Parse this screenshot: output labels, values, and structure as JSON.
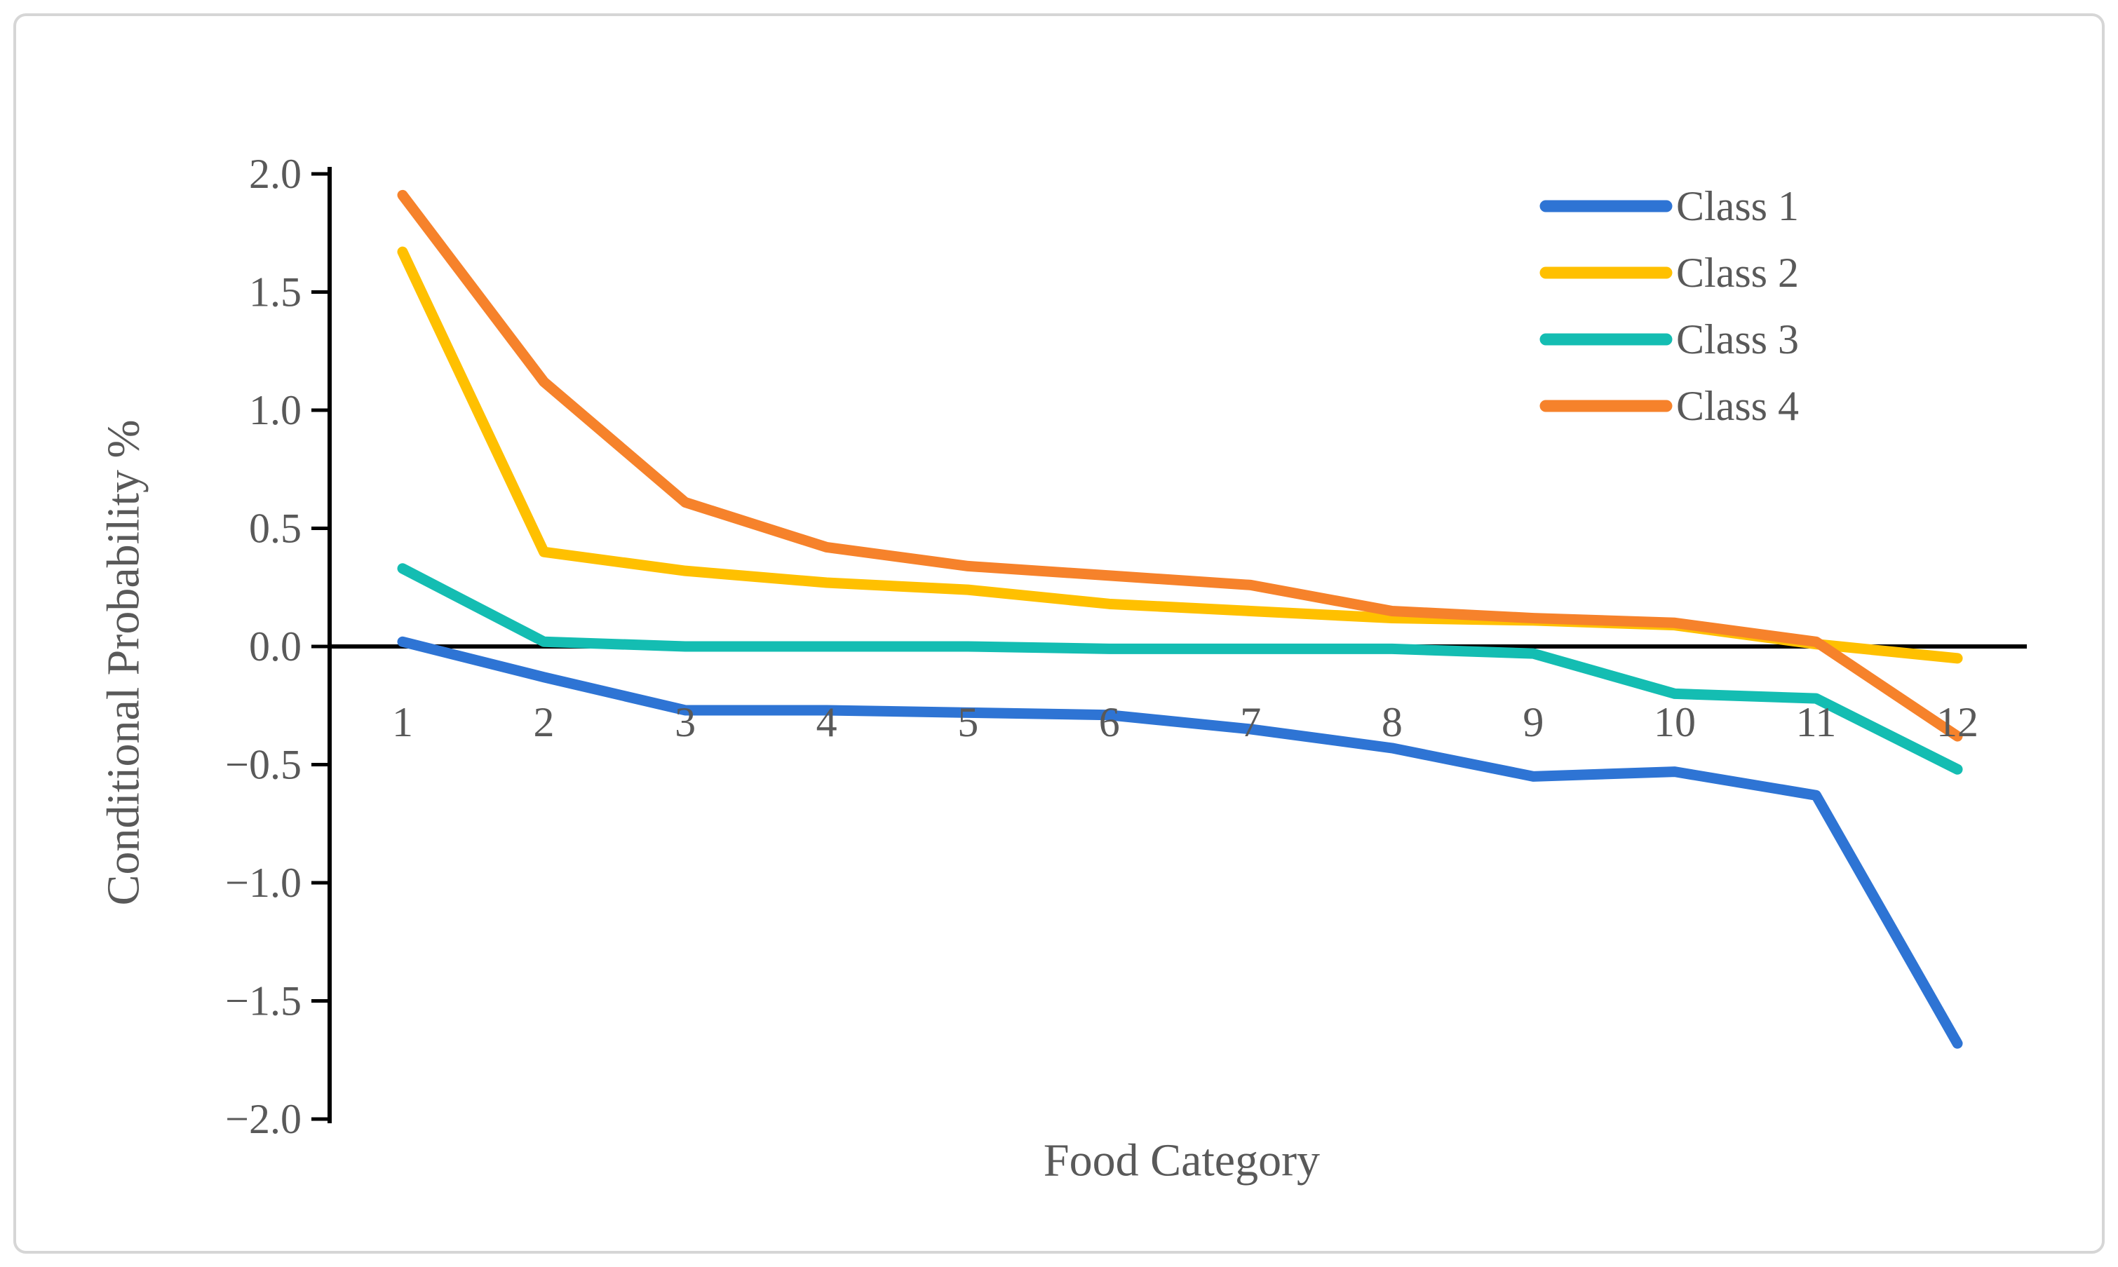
{
  "figure": {
    "background_color": "#ffffff",
    "border_color": "#d6d6d6",
    "text_color": "#595959",
    "axis_color": "#000000"
  },
  "chart_data": {
    "type": "line",
    "title": "",
    "xlabel": "Food Category",
    "ylabel": "Conditional Probability %",
    "categories": [
      "1",
      "2",
      "3",
      "4",
      "5",
      "6",
      "7",
      "8",
      "9",
      "10",
      "11",
      "12"
    ],
    "series": [
      {
        "name": "Class 1",
        "color": "#2E74D4",
        "values": [
          0.02,
          -0.13,
          -0.27,
          -0.27,
          -0.28,
          -0.29,
          -0.35,
          -0.43,
          -0.55,
          -0.53,
          -0.63,
          -1.68
        ]
      },
      {
        "name": "Class 2",
        "color": "#FFC000",
        "values": [
          1.67,
          0.4,
          0.32,
          0.27,
          0.24,
          0.18,
          0.15,
          0.12,
          0.11,
          0.09,
          0.01,
          -0.05
        ]
      },
      {
        "name": "Class 3",
        "color": "#14BDB2",
        "values": [
          0.33,
          0.02,
          0.0,
          0.0,
          0.0,
          -0.01,
          -0.01,
          -0.01,
          -0.03,
          -0.2,
          -0.22,
          -0.52
        ]
      },
      {
        "name": "Class 4",
        "color": "#F6822B",
        "values": [
          1.91,
          1.12,
          0.61,
          0.42,
          0.34,
          0.3,
          0.26,
          0.15,
          0.12,
          0.1,
          0.02,
          -0.38
        ]
      }
    ],
    "ylim": [
      -2.0,
      2.0
    ],
    "ytick_step": 0.5,
    "ytick_labels": [
      "2.0",
      "1.5",
      "1.0",
      "0.5",
      "0.0",
      "−0.5",
      "−1.0",
      "−1.5",
      "−2.0"
    ],
    "ytick_values": [
      2.0,
      1.5,
      1.0,
      0.5,
      0.0,
      -0.5,
      -1.0,
      -1.5,
      -2.0
    ],
    "legend_position": "top-right",
    "grid": false
  }
}
